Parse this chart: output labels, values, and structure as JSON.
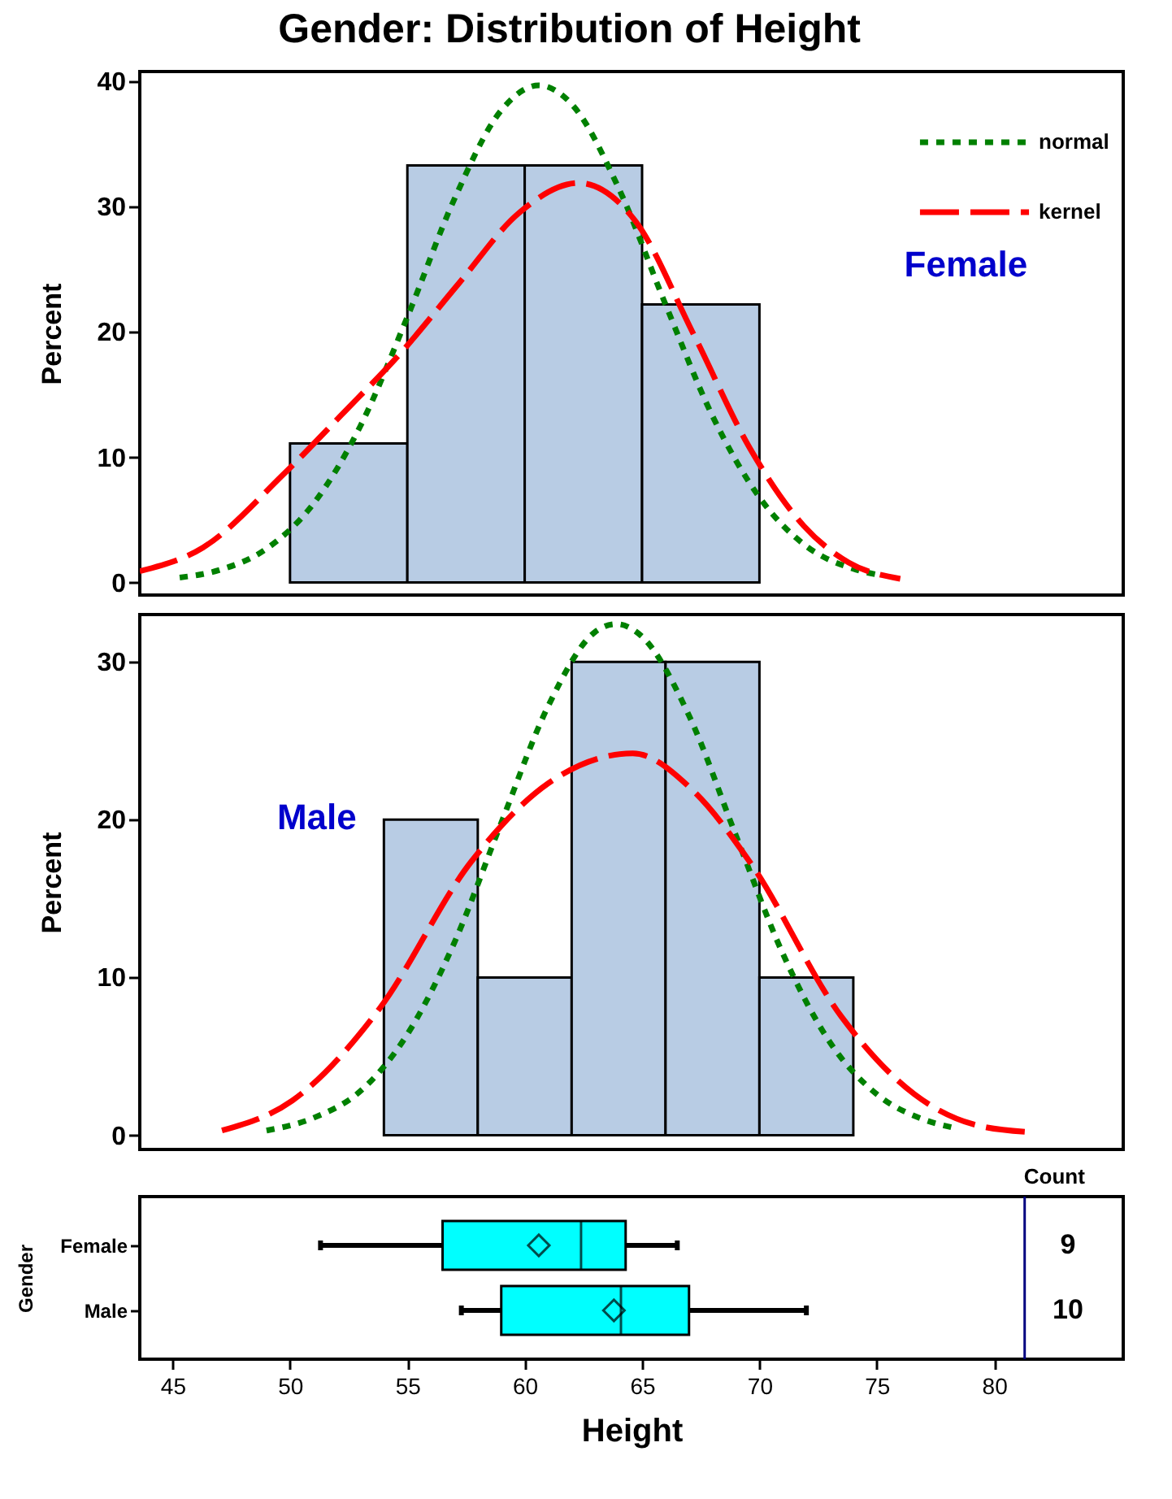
{
  "chart_data": [
    {
      "type": "histogram",
      "title": "Gender: Distribution of Height",
      "ylabel": "Percent",
      "bins": [
        50,
        55,
        60,
        65,
        70
      ],
      "values": [
        11.1,
        33.3,
        33.3,
        22.2
      ],
      "color": "#b8cce4",
      "xlim": [
        43.6,
        85.5
      ],
      "ylim": [
        -1,
        40.8
      ],
      "yticks": [
        0,
        10,
        20,
        30,
        40
      ],
      "tick_labels": "y",
      "legend": "top right",
      "annotations": [
        "Female"
      ],
      "series": [
        {
          "name": "normal",
          "type": "line",
          "color": "#008000",
          "line_style": "dotted",
          "x": [
            45.3,
            47,
            49,
            51,
            53,
            55,
            57,
            59,
            60.6,
            62,
            64,
            66,
            68,
            70,
            72,
            74,
            75.1
          ],
          "values": [
            0.4,
            1,
            2.7,
            6.3,
            12.5,
            21.2,
            30.6,
            37.7,
            39.7,
            38.2,
            31.5,
            22.2,
            13.3,
            6.8,
            2.9,
            1.1,
            0.6
          ]
        },
        {
          "name": "kernel",
          "type": "line",
          "color": "#ff0000",
          "line_style": "dashed",
          "x": [
            43.6,
            46.3,
            49.7,
            52.2,
            54.75,
            57.2,
            59.75,
            62.3,
            64.7,
            67.2,
            69.6,
            71.9,
            73.8,
            76
          ],
          "values": [
            0.9,
            2.8,
            8.6,
            13.4,
            18.4,
            23.9,
            29.5,
            31.9,
            28.9,
            19.8,
            10.7,
            4.5,
            1.6,
            0.3
          ]
        }
      ]
    },
    {
      "type": "histogram",
      "ylabel": "Percent",
      "bins": [
        54,
        58,
        62,
        66,
        70,
        74
      ],
      "values": [
        20,
        10,
        30,
        30,
        10
      ],
      "color": "#b8cce4",
      "xlim": [
        43.6,
        85.5
      ],
      "ylim": [
        -0.9,
        33
      ],
      "yticks": [
        0,
        10,
        20,
        30
      ],
      "tick_labels": "y",
      "annotations": [
        "Male"
      ],
      "series": [
        {
          "type": "line",
          "color": "#008000",
          "line_style": "dotted",
          "x": [
            49,
            51,
            53,
            55,
            57,
            59,
            61,
            63,
            63.9,
            65,
            67,
            69,
            71,
            73,
            75,
            77,
            78.2
          ],
          "values": [
            0.3,
            1.1,
            2.8,
            6.4,
            12.2,
            19.8,
            27.2,
            31.9,
            32.4,
            31.6,
            26.6,
            19,
            11.5,
            5.9,
            2.6,
            1,
            0.5
          ]
        },
        {
          "type": "line",
          "color": "#ff0000",
          "line_style": "dashed",
          "x": [
            47.1,
            50.1,
            53.8,
            57.7,
            61,
            64.6,
            67.2,
            69.6,
            73.5,
            76.6,
            79.1,
            81.5
          ],
          "values": [
            0.3,
            2.2,
            8,
            17.3,
            22.3,
            24.2,
            21.8,
            17.3,
            7.5,
            2.6,
            0.7,
            0.2
          ]
        }
      ]
    },
    {
      "type": "box",
      "orientation": "horizontal",
      "xlabel": "Height",
      "ylabel": "Gender",
      "categories": [
        "Female",
        "Male"
      ],
      "color": "#00ffff",
      "xlim": [
        43.6,
        85.5
      ],
      "xticks": [
        45,
        50,
        55,
        60,
        65,
        70,
        75,
        80
      ],
      "marker": "diamond",
      "boxes": [
        {
          "low": 51.3,
          "q1": 56.5,
          "median": 62.4,
          "q3": 64.3,
          "high": 66.5,
          "mean": 60.6
        },
        {
          "low": 57.3,
          "q1": 59,
          "median": 64.1,
          "q3": 67,
          "high": 72,
          "mean": 63.8
        }
      ],
      "ref_lines": [
        {
          "axis": "x",
          "value": 81.3,
          "color": "#000080"
        }
      ],
      "annotations": [
        "Count",
        "9",
        "10"
      ]
    }
  ]
}
